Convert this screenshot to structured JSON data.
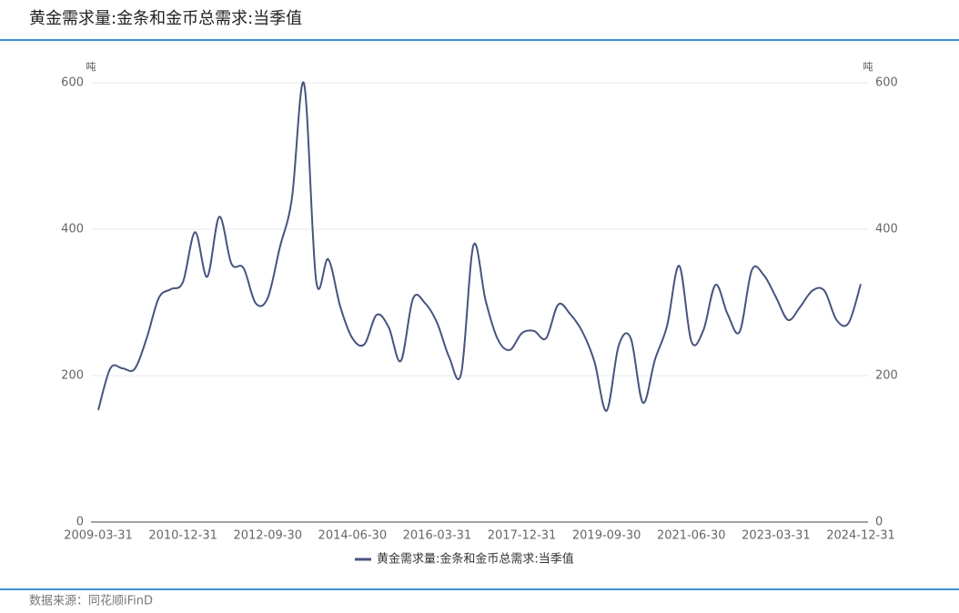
{
  "chart_data": {
    "type": "line",
    "title": "黄金需求量:金条和金币总需求:当季值",
    "source": "数据来源：同花顺iFinD",
    "y_unit": "吨",
    "y2_unit": "吨",
    "categories": [
      "2009-03-31",
      null,
      null,
      null,
      null,
      null,
      null,
      "2010-12-31",
      null,
      null,
      null,
      null,
      null,
      null,
      "2012-09-30",
      null,
      null,
      null,
      null,
      null,
      null,
      "2014-06-30",
      null,
      null,
      null,
      null,
      null,
      null,
      "2016-03-31",
      null,
      null,
      null,
      null,
      null,
      null,
      "2017-12-31",
      null,
      null,
      null,
      null,
      null,
      null,
      "2019-09-30",
      null,
      null,
      null,
      null,
      null,
      null,
      "2021-06-30",
      null,
      null,
      null,
      null,
      null,
      null,
      "2023-03-31",
      null,
      null,
      null,
      null,
      null,
      null,
      "2024-12-31"
    ],
    "series": [
      {
        "name": "黄金需求量:金条和金币总需求:当季值",
        "color": "#47547f",
        "values": [
          153,
          210,
          210,
          209,
          251,
          306,
          318,
          328,
          396,
          335,
          417,
          353,
          347,
          299,
          306,
          375,
          442,
          599,
          330,
          359,
          294,
          251,
          243,
          283,
          266,
          220,
          305,
          299,
          272,
          225,
          204,
          378,
          303,
          250,
          235,
          258,
          261,
          251,
          297,
          284,
          260,
          219,
          152,
          241,
          251,
          163,
          222,
          268,
          350,
          247,
          262,
          324,
          284,
          260,
          344,
          337,
          307,
          276,
          294,
          316,
          316,
          276,
          272,
          325
        ]
      }
    ],
    "ylim": [
      0,
      600
    ],
    "yticks": [
      0,
      200,
      400,
      600
    ],
    "y2lim": [
      0,
      600
    ],
    "y2ticks": [
      0,
      200,
      400,
      600
    ],
    "grid": true
  }
}
